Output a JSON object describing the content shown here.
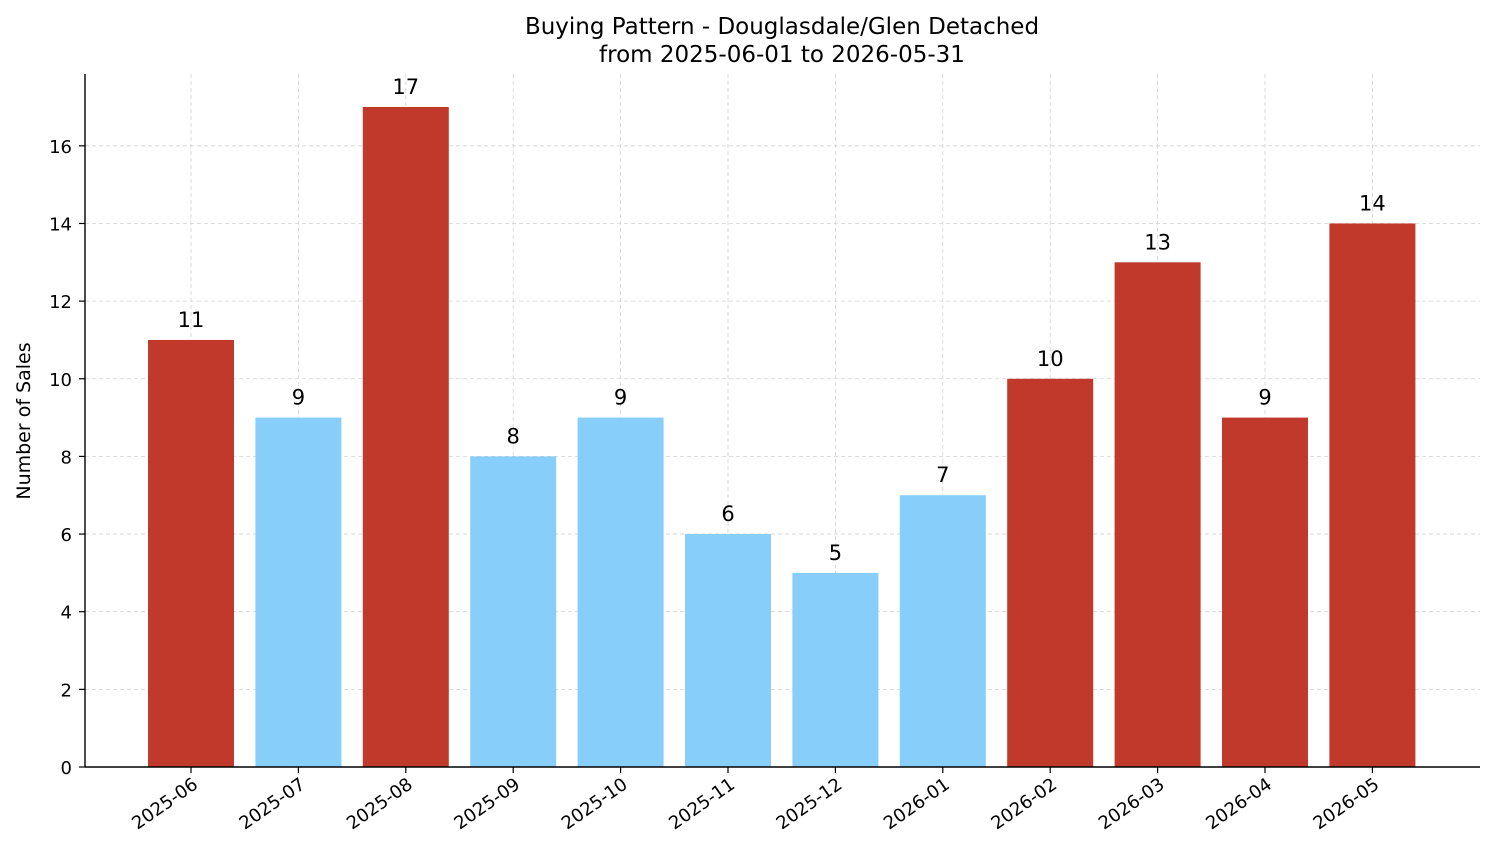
{
  "chart_data": {
    "type": "bar",
    "title": "Buying Pattern - Douglasdale/Glen Detached",
    "subtitle": "from 2025-06-01 to 2026-05-31",
    "xlabel": "",
    "ylabel": "Number of Sales",
    "categories": [
      "2025-06",
      "2025-07",
      "2025-08",
      "2025-09",
      "2025-10",
      "2025-11",
      "2025-12",
      "2026-01",
      "2026-02",
      "2026-03",
      "2026-04",
      "2026-05"
    ],
    "values": [
      11,
      9,
      17,
      8,
      9,
      6,
      5,
      7,
      10,
      13,
      9,
      14
    ],
    "bar_colors": [
      "#c0392b",
      "#87cefa",
      "#c0392b",
      "#87cefa",
      "#87cefa",
      "#87cefa",
      "#87cefa",
      "#87cefa",
      "#c0392b",
      "#c0392b",
      "#c0392b",
      "#c0392b"
    ],
    "ylim": [
      0,
      17.85
    ],
    "yticks": [
      0,
      2,
      4,
      6,
      8,
      10,
      12,
      14,
      16
    ],
    "grid": true,
    "legend": "none",
    "colors": {
      "high": "#c0392b",
      "low": "#87cefa",
      "grid": "#d3d3d3",
      "axis": "#000000"
    }
  }
}
